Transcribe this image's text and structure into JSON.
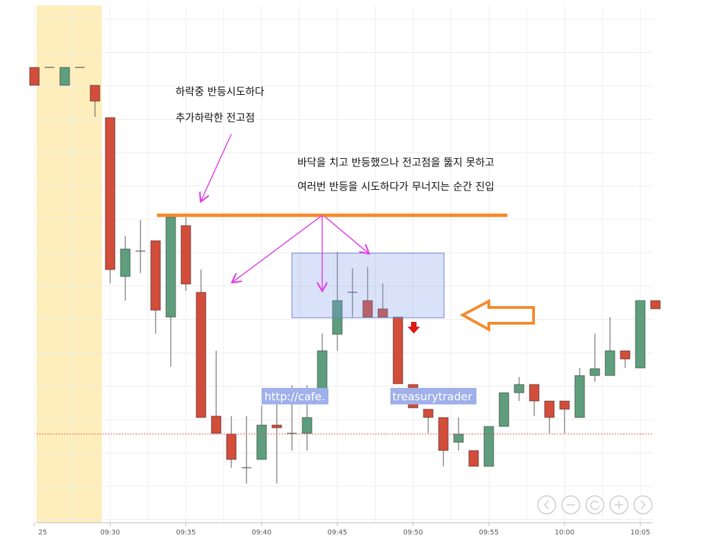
{
  "chart_data": {
    "type": "candlestick",
    "categories": [
      "25",
      null,
      null,
      null,
      null,
      "09:30",
      null,
      null,
      null,
      null,
      "09:35",
      null,
      null,
      null,
      null,
      "09:40",
      null,
      null,
      null,
      null,
      "09:45",
      null,
      null,
      null,
      null,
      "09:50",
      null,
      null,
      null,
      null,
      "09:55",
      null,
      null,
      null,
      null,
      "10:00",
      null,
      null,
      null,
      null,
      "10:05",
      null
    ],
    "open": [
      66.2,
      66.2,
      63.6,
      66.2,
      63.6,
      58.9,
      35.8,
      39.5,
      41.0,
      29.9,
      43.2,
      33.5,
      15.5,
      12.9,
      8.0,
      9.2,
      14.2,
      13.0,
      13.0,
      17.7,
      27.4,
      33.5,
      32.3,
      31.1,
      29.9,
      20.1,
      16.5,
      15.3,
      11.7,
      10.5,
      8.2,
      14.0,
      18.9,
      20.1,
      17.7,
      17.7,
      15.3,
      21.4,
      21.4,
      25.0,
      22.5,
      32.3
    ],
    "high": [
      66.2,
      66.2,
      66.2,
      66.2,
      63.6,
      58.9,
      41.7,
      44.0,
      41.0,
      44.4,
      44.4,
      36.8,
      25.0,
      15.5,
      15.5,
      17.0,
      17.5,
      20.0,
      20.0,
      27.5,
      39.4,
      37.0,
      37.2,
      34.8,
      29.9,
      20.1,
      16.5,
      15.3,
      15.3,
      10.5,
      14.0,
      18.9,
      21.2,
      20.1,
      17.7,
      17.7,
      22.5,
      27.5,
      29.9,
      25.0,
      32.3,
      32.3
    ],
    "low": [
      63.6,
      66.2,
      63.6,
      66.2,
      59.0,
      34.8,
      32.3,
      36.3,
      27.5,
      22.7,
      33.7,
      15.3,
      13.0,
      8.0,
      5.7,
      9.2,
      5.7,
      10.5,
      10.5,
      17.7,
      25.0,
      29.9,
      29.9,
      29.9,
      20.2,
      16.7,
      13.0,
      8.2,
      10.5,
      8.2,
      8.2,
      14.0,
      17.7,
      15.5,
      13.0,
      13.0,
      15.3,
      20.5,
      21.4,
      22.5,
      22.5,
      31.1
    ],
    "close": [
      63.6,
      66.2,
      66.2,
      66.2,
      61.3,
      36.8,
      39.8,
      39.5,
      30.9,
      44.4,
      34.7,
      15.3,
      13.0,
      9.2,
      8.0,
      14.2,
      13.8,
      13.0,
      15.3,
      25.0,
      32.3,
      33.5,
      29.9,
      29.9,
      20.2,
      16.7,
      15.3,
      10.5,
      12.9,
      8.2,
      14.0,
      18.9,
      20.1,
      17.7,
      15.3,
      16.5,
      21.4,
      22.4,
      25.0,
      23.8,
      32.3,
      31.1
    ],
    "up_color": "#5e9e7c",
    "down_color": "#d24d3a",
    "ylim": [
      0,
      75
    ],
    "annotations": [
      "하락중 반등시도하다",
      "추가하락한  전고점",
      "바닥을 치고 반등했으나 전고점을 뚫지 못하고",
      "여러번 반등을 시도하다가 무너지는 순간 진입"
    ],
    "watermark": [
      "http://cafe.",
      "treasurytrader"
    ]
  }
}
